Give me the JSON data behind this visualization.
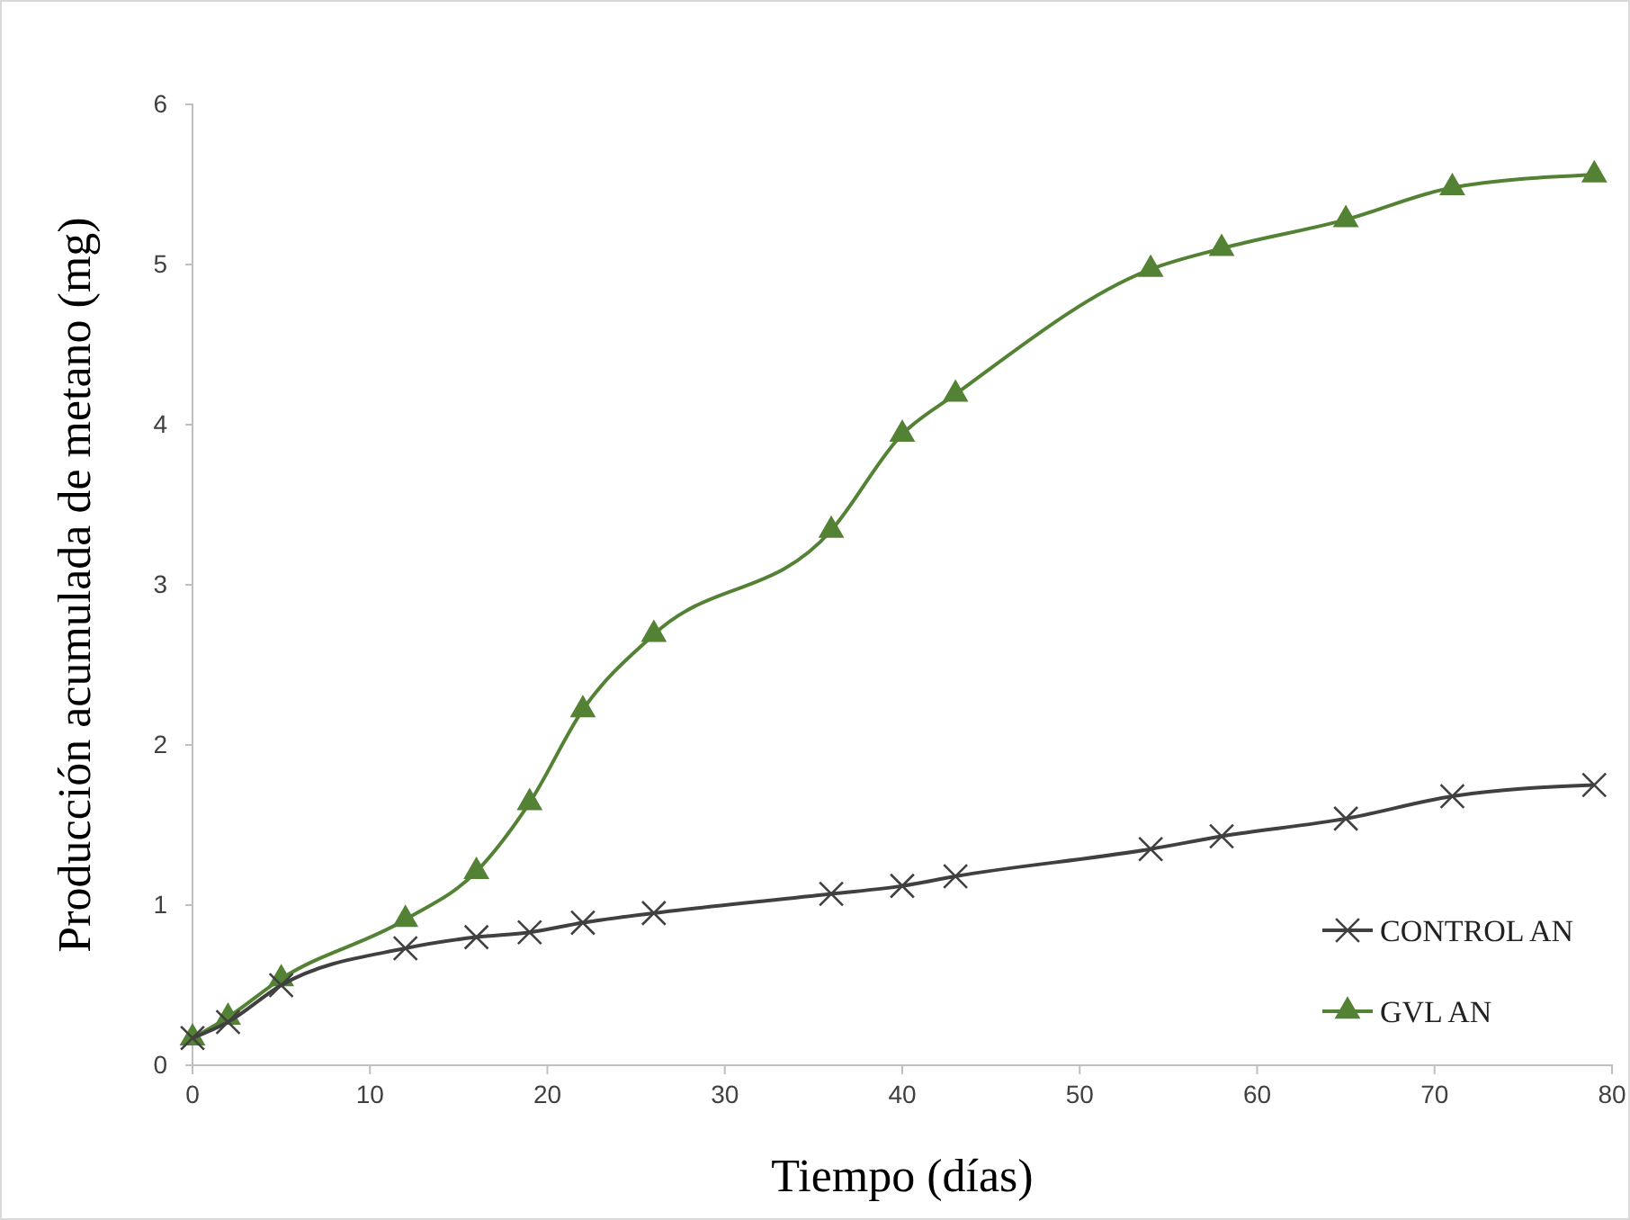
{
  "chart_data": {
    "type": "line",
    "xlabel": "Tiempo (días)",
    "ylabel": "Producción acumulada de metano (mg)",
    "xlim": [
      0,
      80
    ],
    "xticks": [
      0,
      10,
      20,
      30,
      40,
      50,
      60,
      70,
      80
    ],
    "ylim": [
      0,
      6
    ],
    "yticks": [
      0,
      1,
      2,
      3,
      4,
      5,
      6
    ],
    "grid": false,
    "legend": "right",
    "line_style": "solid",
    "series": [
      {
        "name": "CONTROL AN",
        "color": "#404040",
        "marker": "cross",
        "x": [
          0,
          2,
          5,
          12,
          16,
          19,
          22,
          26,
          36,
          40,
          43,
          54,
          58,
          65,
          71,
          79
        ],
        "values": [
          0.17,
          0.27,
          0.5,
          0.73,
          0.8,
          0.83,
          0.89,
          0.95,
          1.07,
          1.12,
          1.18,
          1.35,
          1.43,
          1.54,
          1.68,
          1.75
        ]
      },
      {
        "name": "GVL AN",
        "color": "#548235",
        "marker": "triangle",
        "x": [
          0,
          2,
          5,
          12,
          16,
          19,
          22,
          26,
          36,
          40,
          43,
          54,
          58,
          65,
          71,
          79
        ],
        "values": [
          0.17,
          0.3,
          0.54,
          0.91,
          1.21,
          1.64,
          2.22,
          2.69,
          3.34,
          3.94,
          4.19,
          4.97,
          5.1,
          5.28,
          5.48,
          5.56
        ]
      }
    ]
  }
}
